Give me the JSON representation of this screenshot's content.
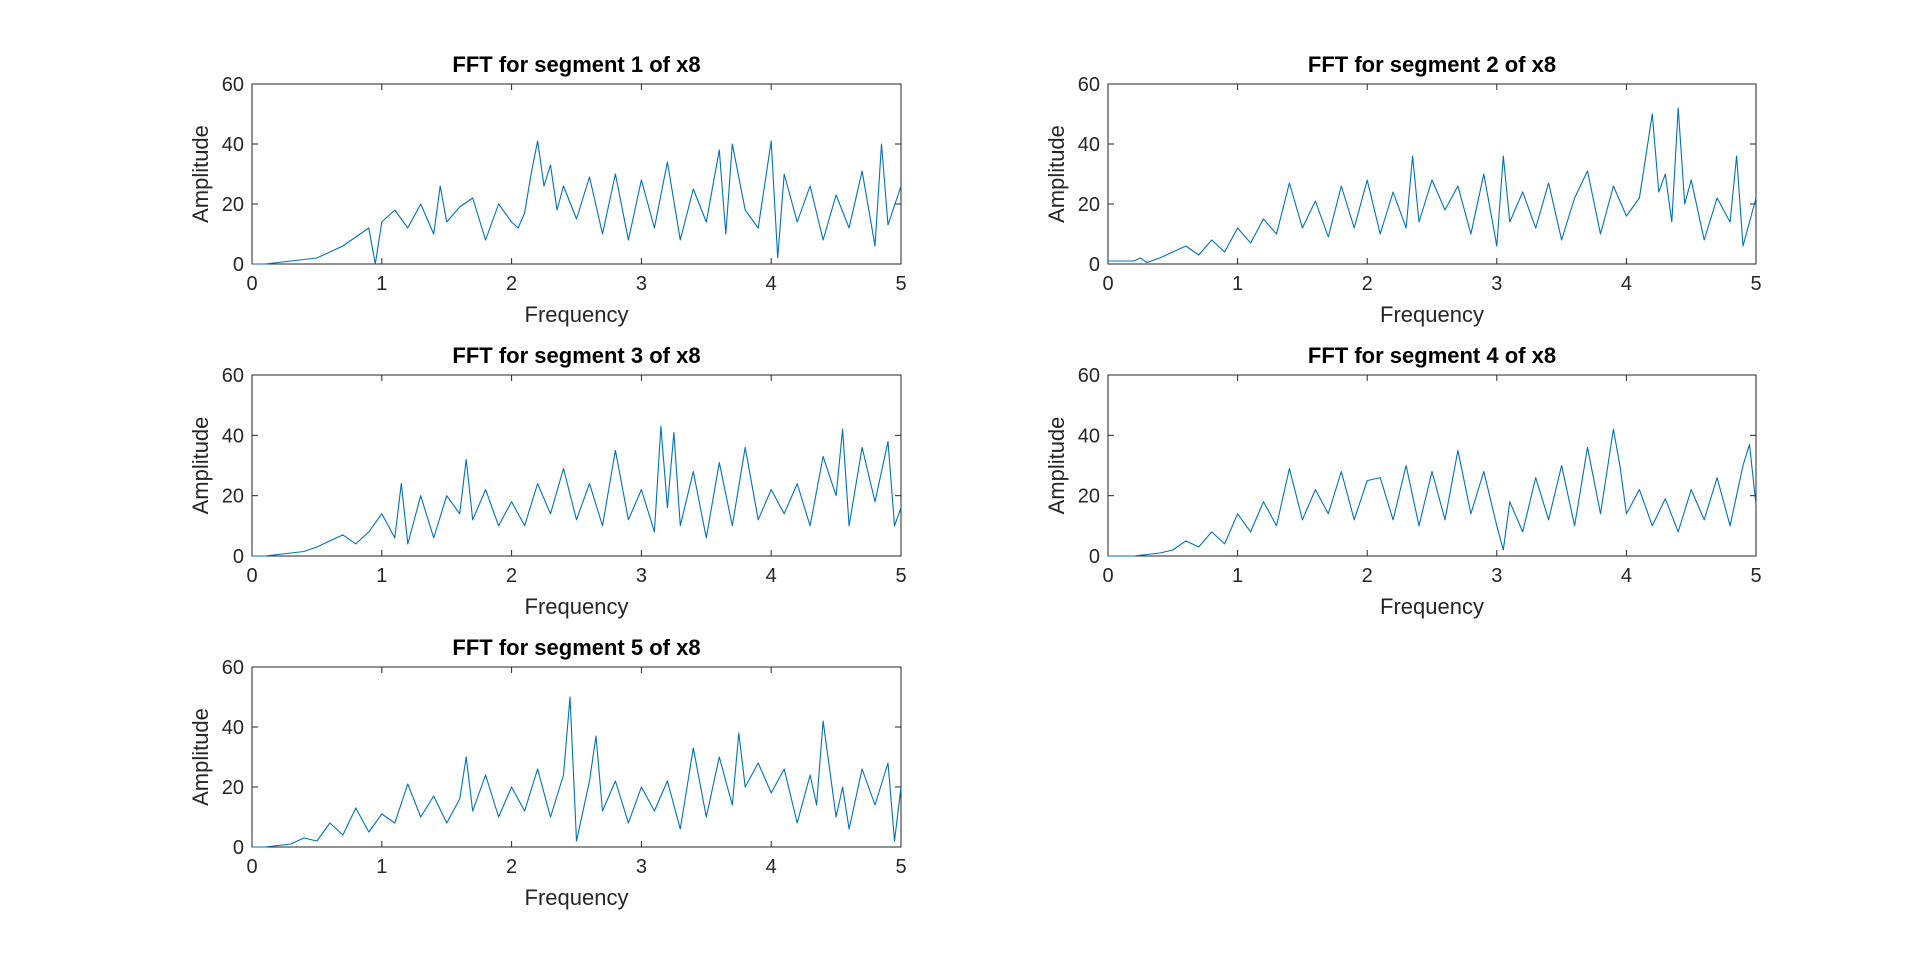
{
  "colors": {
    "series": "#0072BD",
    "axes": "#262626",
    "background": "#ffffff"
  },
  "chart_data": [
    {
      "type": "line",
      "title": "FFT for segment 1 of x8",
      "xlabel": "Frequency",
      "ylabel": "Amplitude",
      "xlim": [
        0,
        5
      ],
      "ylim": [
        0,
        60
      ],
      "xticks": [
        "0",
        "1",
        "2",
        "3",
        "4",
        "5"
      ],
      "yticks": [
        "0",
        "20",
        "40",
        "60"
      ],
      "grid": false,
      "series": [
        {
          "x": [
            0,
            0.1,
            0.2,
            0.3,
            0.4,
            0.5,
            0.6,
            0.7,
            0.8,
            0.9,
            0.95,
            1.0,
            1.1,
            1.2,
            1.3,
            1.4,
            1.45,
            1.5,
            1.6,
            1.7,
            1.8,
            1.9,
            2.0,
            2.05,
            2.1,
            2.15,
            2.2,
            2.25,
            2.3,
            2.35,
            2.4,
            2.5,
            2.6,
            2.7,
            2.8,
            2.9,
            3.0,
            3.1,
            3.2,
            3.3,
            3.4,
            3.5,
            3.6,
            3.65,
            3.7,
            3.8,
            3.9,
            4.0,
            4.05,
            4.1,
            4.2,
            4.3,
            4.4,
            4.5,
            4.6,
            4.7,
            4.8,
            4.85,
            4.9,
            5.0
          ],
          "y": [
            0,
            0,
            0.5,
            1,
            1.5,
            2,
            4,
            6,
            9,
            12,
            0,
            14,
            18,
            12,
            20,
            10,
            26,
            14,
            19,
            22,
            8,
            20,
            14,
            12,
            17,
            30,
            41,
            26,
            33,
            18,
            26,
            15,
            29,
            10,
            30,
            8,
            28,
            12,
            34,
            8,
            25,
            14,
            38,
            10,
            40,
            18,
            12,
            41,
            2,
            30,
            14,
            26,
            8,
            23,
            12,
            31,
            6,
            40,
            13,
            26
          ]
        }
      ]
    },
    {
      "type": "line",
      "title": "FFT for segment 2 of x8",
      "xlabel": "Frequency",
      "ylabel": "Amplitude",
      "xlim": [
        0,
        5
      ],
      "ylim": [
        0,
        60
      ],
      "xticks": [
        "0",
        "1",
        "2",
        "3",
        "4",
        "5"
      ],
      "yticks": [
        "0",
        "20",
        "40",
        "60"
      ],
      "grid": false,
      "series": [
        {
          "x": [
            0,
            0.1,
            0.2,
            0.25,
            0.3,
            0.4,
            0.5,
            0.6,
            0.7,
            0.8,
            0.9,
            1.0,
            1.1,
            1.2,
            1.3,
            1.4,
            1.5,
            1.6,
            1.7,
            1.8,
            1.9,
            2.0,
            2.1,
            2.2,
            2.3,
            2.35,
            2.4,
            2.5,
            2.6,
            2.7,
            2.8,
            2.9,
            3.0,
            3.05,
            3.1,
            3.2,
            3.3,
            3.4,
            3.5,
            3.6,
            3.7,
            3.8,
            3.9,
            4.0,
            4.1,
            4.2,
            4.25,
            4.3,
            4.35,
            4.4,
            4.45,
            4.5,
            4.6,
            4.7,
            4.8,
            4.85,
            4.9,
            5.0
          ],
          "y": [
            1,
            1,
            1,
            2,
            0.5,
            2,
            4,
            6,
            3,
            8,
            4,
            12,
            7,
            15,
            10,
            27,
            12,
            21,
            9,
            26,
            12,
            28,
            10,
            24,
            12,
            36,
            14,
            28,
            18,
            26,
            10,
            30,
            6,
            36,
            14,
            24,
            12,
            27,
            8,
            22,
            31,
            10,
            26,
            16,
            22,
            50,
            24,
            30,
            14,
            52,
            20,
            28,
            8,
            22,
            14,
            36,
            6,
            22
          ]
        }
      ]
    },
    {
      "type": "line",
      "title": "FFT for segment 3 of x8",
      "xlabel": "Frequency",
      "ylabel": "Amplitude",
      "xlim": [
        0,
        5
      ],
      "ylim": [
        0,
        60
      ],
      "xticks": [
        "0",
        "1",
        "2",
        "3",
        "4",
        "5"
      ],
      "yticks": [
        "0",
        "20",
        "40",
        "60"
      ],
      "grid": false,
      "series": [
        {
          "x": [
            0,
            0.1,
            0.2,
            0.3,
            0.4,
            0.5,
            0.6,
            0.7,
            0.8,
            0.9,
            1.0,
            1.1,
            1.15,
            1.2,
            1.3,
            1.4,
            1.5,
            1.6,
            1.65,
            1.7,
            1.8,
            1.9,
            2.0,
            2.1,
            2.2,
            2.3,
            2.4,
            2.5,
            2.6,
            2.7,
            2.8,
            2.9,
            3.0,
            3.1,
            3.15,
            3.2,
            3.25,
            3.3,
            3.4,
            3.5,
            3.6,
            3.7,
            3.8,
            3.9,
            4.0,
            4.1,
            4.2,
            4.3,
            4.4,
            4.5,
            4.55,
            4.6,
            4.7,
            4.8,
            4.9,
            4.95,
            5.0
          ],
          "y": [
            0,
            0,
            0.5,
            1,
            1.5,
            3,
            5,
            7,
            4,
            8,
            14,
            6,
            24,
            4,
            20,
            6,
            20,
            14,
            32,
            12,
            22,
            10,
            18,
            10,
            24,
            14,
            29,
            12,
            24,
            10,
            35,
            12,
            22,
            8,
            43,
            16,
            41,
            10,
            28,
            6,
            31,
            10,
            36,
            12,
            22,
            14,
            24,
            10,
            33,
            20,
            42,
            10,
            36,
            18,
            38,
            10,
            16
          ]
        }
      ]
    },
    {
      "type": "line",
      "title": "FFT for segment 4 of x8",
      "xlabel": "Frequency",
      "ylabel": "Amplitude",
      "xlim": [
        0,
        5
      ],
      "ylim": [
        0,
        60
      ],
      "xticks": [
        "0",
        "1",
        "2",
        "3",
        "4",
        "5"
      ],
      "yticks": [
        "0",
        "20",
        "40",
        "60"
      ],
      "grid": false,
      "series": [
        {
          "x": [
            0,
            0.1,
            0.2,
            0.3,
            0.4,
            0.5,
            0.6,
            0.7,
            0.8,
            0.9,
            1.0,
            1.1,
            1.2,
            1.3,
            1.4,
            1.5,
            1.6,
            1.7,
            1.8,
            1.9,
            2.0,
            2.1,
            2.2,
            2.3,
            2.4,
            2.5,
            2.6,
            2.7,
            2.8,
            2.9,
            3.0,
            3.05,
            3.1,
            3.2,
            3.3,
            3.4,
            3.5,
            3.6,
            3.7,
            3.8,
            3.9,
            3.95,
            4.0,
            4.1,
            4.2,
            4.3,
            4.4,
            4.5,
            4.6,
            4.7,
            4.8,
            4.9,
            4.95,
            5.0
          ],
          "y": [
            0,
            0,
            0,
            0.5,
            1,
            2,
            5,
            3,
            8,
            4,
            14,
            8,
            18,
            10,
            29,
            12,
            22,
            14,
            28,
            12,
            25,
            26,
            12,
            30,
            10,
            28,
            12,
            35,
            14,
            28,
            10,
            2,
            18,
            8,
            26,
            12,
            30,
            10,
            36,
            14,
            42,
            30,
            14,
            22,
            10,
            19,
            8,
            22,
            12,
            26,
            10,
            30,
            37,
            17
          ]
        }
      ]
    },
    {
      "type": "line",
      "title": "FFT for segment 5 of x8",
      "xlabel": "Frequency",
      "ylabel": "Amplitude",
      "xlim": [
        0,
        5
      ],
      "ylim": [
        0,
        60
      ],
      "xticks": [
        "0",
        "1",
        "2",
        "3",
        "4",
        "5"
      ],
      "yticks": [
        "0",
        "20",
        "40",
        "60"
      ],
      "grid": false,
      "series": [
        {
          "x": [
            0,
            0.1,
            0.2,
            0.3,
            0.4,
            0.5,
            0.6,
            0.7,
            0.8,
            0.9,
            1.0,
            1.1,
            1.2,
            1.3,
            1.4,
            1.5,
            1.6,
            1.65,
            1.7,
            1.8,
            1.9,
            2.0,
            2.1,
            2.2,
            2.3,
            2.4,
            2.45,
            2.5,
            2.6,
            2.65,
            2.7,
            2.8,
            2.9,
            3.0,
            3.1,
            3.2,
            3.3,
            3.4,
            3.5,
            3.6,
            3.7,
            3.75,
            3.8,
            3.9,
            4.0,
            4.1,
            4.2,
            4.3,
            4.35,
            4.4,
            4.5,
            4.55,
            4.6,
            4.7,
            4.8,
            4.9,
            4.95,
            5.0
          ],
          "y": [
            0,
            0,
            0.5,
            1,
            3,
            2,
            8,
            4,
            13,
            5,
            11,
            8,
            21,
            10,
            17,
            8,
            16,
            30,
            12,
            24,
            10,
            20,
            12,
            26,
            10,
            24,
            50,
            2,
            22,
            37,
            12,
            22,
            8,
            20,
            12,
            22,
            6,
            33,
            10,
            30,
            14,
            38,
            20,
            28,
            18,
            26,
            8,
            24,
            14,
            42,
            10,
            20,
            6,
            26,
            14,
            28,
            2,
            20
          ]
        }
      ]
    }
  ]
}
